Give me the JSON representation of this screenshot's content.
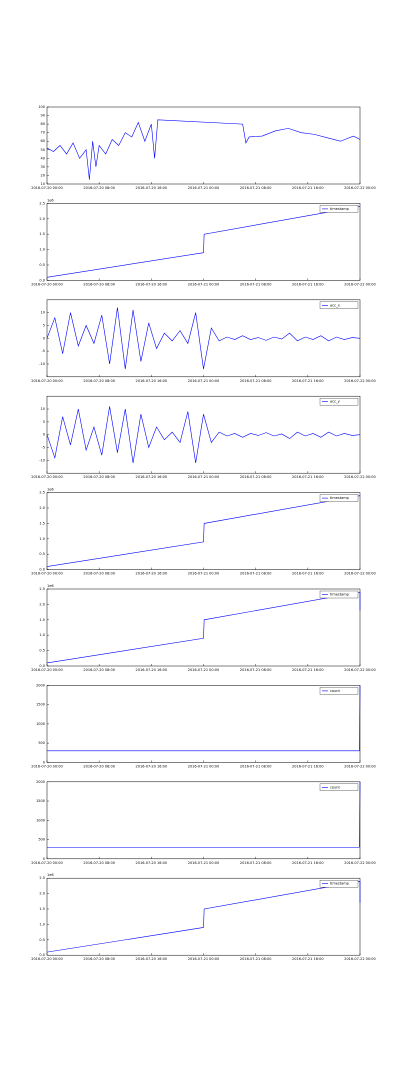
{
  "chart_data": [
    {
      "type": "line",
      "x": [
        0,
        1,
        2,
        3,
        4,
        5,
        6,
        6.5,
        7,
        7.5,
        8,
        9,
        10,
        11,
        12,
        13,
        14,
        15,
        16,
        16.5,
        17,
        30,
        30.5,
        31,
        33,
        35,
        37,
        39,
        41,
        43,
        45,
        47,
        48
      ],
      "values": [
        52,
        48,
        55,
        45,
        58,
        40,
        50,
        15,
        60,
        30,
        55,
        45,
        62,
        55,
        70,
        65,
        82,
        60,
        80,
        40,
        85,
        80,
        58,
        65,
        66,
        72,
        75,
        70,
        68,
        64,
        60,
        66,
        62
      ],
      "color": "#0000ff",
      "xlim": [
        0,
        48
      ],
      "ylim": [
        10,
        100
      ],
      "yticks": [
        10,
        20,
        30,
        40,
        50,
        60,
        70,
        80,
        90,
        100
      ],
      "xticks": [
        {
          "value": 0,
          "label": "2016-07-20 00:00"
        },
        {
          "value": 8,
          "label": "2016-07-20 08:00"
        },
        {
          "value": 16,
          "label": "2016-07-20 16:00"
        },
        {
          "value": 24,
          "label": "2016-07-21 00:00"
        },
        {
          "value": 32,
          "label": "2016-07-21 08:00"
        },
        {
          "value": 40,
          "label": "2016-07-21 16:00"
        },
        {
          "value": 48,
          "label": "2016-07-22 00:00"
        }
      ]
    },
    {
      "type": "line",
      "x": [
        0,
        24,
        24.1,
        48
      ],
      "series": [
        {
          "name": "timestamp",
          "color": "#0000ff",
          "values": [
            100000,
            900000,
            1500000,
            2400000
          ]
        }
      ],
      "xlim": [
        0,
        48
      ],
      "ylim": [
        0,
        2500000
      ],
      "offset_label": "1e6",
      "yticks": [
        {
          "value": 0,
          "label": "0.0"
        },
        {
          "value": 500000,
          "label": "0.5"
        },
        {
          "value": 1000000,
          "label": "1.0"
        },
        {
          "value": 1500000,
          "label": "1.5"
        },
        {
          "value": 2000000,
          "label": "2.0"
        },
        {
          "value": 2500000,
          "label": "2.5"
        }
      ],
      "xticks": [
        {
          "value": 0,
          "label": "2016-07-20 00:00"
        },
        {
          "value": 8,
          "label": "2016-07-20 08:00"
        },
        {
          "value": 16,
          "label": "2016-07-20 16:00"
        },
        {
          "value": 24,
          "label": "2016-07-21 00:00"
        },
        {
          "value": 32,
          "label": "2016-07-21 08:00"
        },
        {
          "value": 40,
          "label": "2016-07-21 16:00"
        },
        {
          "value": 48,
          "label": "2016-07-22 00:00"
        }
      ]
    },
    {
      "type": "line",
      "x": [
        0,
        1.2,
        2.4,
        3.6,
        4.8,
        6,
        7.2,
        8.4,
        9.6,
        10.8,
        12,
        13.2,
        14.4,
        15.6,
        16.8,
        18,
        19.2,
        20.4,
        21.6,
        22.8,
        24,
        25.2,
        26.4,
        27.6,
        28.8,
        30,
        31.2,
        32.4,
        33.6,
        34.8,
        36,
        37.2,
        38.4,
        39.6,
        40.8,
        42,
        43.2,
        44.4,
        45.6,
        46.8,
        48
      ],
      "series": [
        {
          "name": "acc_x",
          "color": "#0000ff",
          "values": [
            0,
            8,
            -6,
            10,
            -3,
            5,
            -2,
            9,
            -10,
            12,
            -12,
            11,
            -9,
            6,
            -4,
            2,
            -1,
            3,
            -2,
            10,
            -12,
            4,
            -1,
            0.5,
            -0.5,
            1,
            -0.5,
            0.3,
            -0.8,
            0.5,
            -0.3,
            2,
            -1,
            0.5,
            -0.5,
            1,
            -1,
            0.5,
            -0.5,
            0.3,
            0
          ]
        }
      ],
      "xlim": [
        0,
        48
      ],
      "ylim": [
        -15,
        15
      ],
      "yticks": [
        -10,
        -5,
        0,
        5,
        10
      ],
      "xticks": [
        {
          "value": 0,
          "label": "2016-07-20 00:00"
        },
        {
          "value": 8,
          "label": "2016-07-20 08:00"
        },
        {
          "value": 16,
          "label": "2016-07-20 16:00"
        },
        {
          "value": 24,
          "label": "2016-07-21 00:00"
        },
        {
          "value": 32,
          "label": "2016-07-21 08:00"
        },
        {
          "value": 40,
          "label": "2016-07-21 16:00"
        },
        {
          "value": 48,
          "label": "2016-07-22 00:00"
        }
      ]
    },
    {
      "type": "line",
      "x": [
        0,
        1.2,
        2.4,
        3.6,
        4.8,
        6,
        7.2,
        8.4,
        9.6,
        10.8,
        12,
        13.2,
        14.4,
        15.6,
        16.8,
        18,
        19.2,
        20.4,
        21.6,
        22.8,
        24,
        25.2,
        26.4,
        27.6,
        28.8,
        30,
        31.2,
        32.4,
        33.6,
        34.8,
        36,
        37.2,
        38.4,
        39.6,
        40.8,
        42,
        43.2,
        44.4,
        45.6,
        46.8,
        48
      ],
      "series": [
        {
          "name": "acc_y",
          "color": "#0000ff",
          "values": [
            0,
            -9,
            7,
            -4,
            10,
            -6,
            3,
            -8,
            11,
            -7,
            10,
            -11,
            8,
            -5,
            3,
            -2,
            1,
            -3,
            9,
            -11,
            8,
            -3,
            1,
            -0.5,
            0.5,
            -1,
            0.5,
            -0.3,
            0.8,
            -0.5,
            0.3,
            -1.5,
            1,
            -0.5,
            0.5,
            -1,
            1,
            -0.5,
            0.5,
            -0.3,
            0
          ]
        }
      ],
      "xlim": [
        0,
        48
      ],
      "ylim": [
        -15,
        15
      ],
      "yticks": [
        -10,
        -5,
        0,
        5,
        10
      ],
      "xticks": [
        {
          "value": 0,
          "label": "2016-07-20 00:00"
        },
        {
          "value": 8,
          "label": "2016-07-20 08:00"
        },
        {
          "value": 16,
          "label": "2016-07-20 16:00"
        },
        {
          "value": 24,
          "label": "2016-07-21 00:00"
        },
        {
          "value": 32,
          "label": "2016-07-21 08:00"
        },
        {
          "value": 40,
          "label": "2016-07-21 16:00"
        },
        {
          "value": 48,
          "label": "2016-07-22 00:00"
        }
      ]
    },
    {
      "type": "line",
      "x": [
        0,
        24,
        24.1,
        48
      ],
      "series": [
        {
          "name": "timestamp",
          "color": "#0000ff",
          "values": [
            100000,
            900000,
            1500000,
            2400000
          ]
        }
      ],
      "xlim": [
        0,
        48
      ],
      "ylim": [
        0,
        2500000
      ],
      "offset_label": "1e6",
      "yticks": [
        {
          "value": 0,
          "label": "0.0"
        },
        {
          "value": 500000,
          "label": "0.5"
        },
        {
          "value": 1000000,
          "label": "1.0"
        },
        {
          "value": 1500000,
          "label": "1.5"
        },
        {
          "value": 2000000,
          "label": "2.0"
        },
        {
          "value": 2500000,
          "label": "2.5"
        }
      ],
      "xticks": [
        {
          "value": 0,
          "label": "2016-07-20 00:00"
        },
        {
          "value": 8,
          "label": "2016-07-20 08:00"
        },
        {
          "value": 16,
          "label": "2016-07-20 16:00"
        },
        {
          "value": 24,
          "label": "2016-07-21 00:00"
        },
        {
          "value": 32,
          "label": "2016-07-21 08:00"
        },
        {
          "value": 40,
          "label": "2016-07-21 16:00"
        },
        {
          "value": 48,
          "label": "2016-07-22 00:00"
        }
      ]
    },
    {
      "type": "line",
      "x": [
        0,
        24,
        24.1,
        48,
        48
      ],
      "series": [
        {
          "name": "timestamp",
          "color": "#0000ff",
          "values": [
            100000,
            900000,
            1500000,
            2400000,
            1800000
          ]
        }
      ],
      "xlim": [
        0,
        48
      ],
      "ylim": [
        0,
        2500000
      ],
      "offset_label": "1e6",
      "yticks": [
        {
          "value": 0,
          "label": "0.0"
        },
        {
          "value": 500000,
          "label": "0.5"
        },
        {
          "value": 1000000,
          "label": "1.0"
        },
        {
          "value": 1500000,
          "label": "1.5"
        },
        {
          "value": 2000000,
          "label": "2.0"
        },
        {
          "value": 2500000,
          "label": "2.5"
        }
      ],
      "xticks": [
        {
          "value": 0,
          "label": "2016-07-20 00:00"
        },
        {
          "value": 8,
          "label": "2016-07-20 08:00"
        },
        {
          "value": 16,
          "label": "2016-07-20 16:00"
        },
        {
          "value": 24,
          "label": "2016-07-21 00:00"
        },
        {
          "value": 32,
          "label": "2016-07-21 08:00"
        },
        {
          "value": 40,
          "label": "2016-07-21 16:00"
        },
        {
          "value": 48,
          "label": "2016-07-22 00:00"
        }
      ]
    },
    {
      "type": "line",
      "x": [
        0,
        47.9,
        48
      ],
      "series": [
        {
          "name": "count",
          "color": "#0000ff",
          "values": [
            300,
            300,
            2000
          ]
        }
      ],
      "xlim": [
        0,
        48
      ],
      "ylim": [
        0,
        2000
      ],
      "yticks": [
        0,
        500,
        1000,
        1500,
        2000
      ],
      "xticks": [
        {
          "value": 0,
          "label": "2016-07-20 00:00"
        },
        {
          "value": 8,
          "label": "2016-07-20 08:00"
        },
        {
          "value": 16,
          "label": "2016-07-20 16:00"
        },
        {
          "value": 24,
          "label": "2016-07-21 00:00"
        },
        {
          "value": 32,
          "label": "2016-07-21 08:00"
        },
        {
          "value": 40,
          "label": "2016-07-21 16:00"
        },
        {
          "value": 48,
          "label": "2016-07-22 00:00"
        }
      ]
    },
    {
      "type": "line",
      "x": [
        0,
        47.9,
        48
      ],
      "series": [
        {
          "name": "count",
          "color": "#0000ff",
          "values": [
            300,
            300,
            2000
          ]
        }
      ],
      "xlim": [
        0,
        48
      ],
      "ylim": [
        0,
        2000
      ],
      "yticks": [
        0,
        500,
        1000,
        1500,
        2000
      ],
      "xticks": [
        {
          "value": 0,
          "label": "2016-07-20 00:00"
        },
        {
          "value": 8,
          "label": "2016-07-20 08:00"
        },
        {
          "value": 16,
          "label": "2016-07-20 16:00"
        },
        {
          "value": 24,
          "label": "2016-07-21 00:00"
        },
        {
          "value": 32,
          "label": "2016-07-21 08:00"
        },
        {
          "value": 40,
          "label": "2016-07-21 16:00"
        },
        {
          "value": 48,
          "label": "2016-07-22 00:00"
        }
      ]
    },
    {
      "type": "line",
      "x": [
        0,
        24,
        24.1,
        48,
        48
      ],
      "series": [
        {
          "name": "timestamp",
          "color": "#0000ff",
          "values": [
            100000,
            900000,
            1500000,
            2400000,
            1700000
          ]
        }
      ],
      "xlim": [
        0,
        48
      ],
      "ylim": [
        0,
        2500000
      ],
      "offset_label": "1e6",
      "yticks": [
        {
          "value": 0,
          "label": "0.0"
        },
        {
          "value": 500000,
          "label": "0.5"
        },
        {
          "value": 1000000,
          "label": "1.0"
        },
        {
          "value": 1500000,
          "label": "1.5"
        },
        {
          "value": 2000000,
          "label": "2.0"
        },
        {
          "value": 2500000,
          "label": "2.5"
        }
      ],
      "xticks": [
        {
          "value": 0,
          "label": "2016-07-20 00:00"
        },
        {
          "value": 8,
          "label": "2016-07-20 08:00"
        },
        {
          "value": 16,
          "label": "2016-07-20 16:00"
        },
        {
          "value": 24,
          "label": "2016-07-21 00:00"
        },
        {
          "value": 32,
          "label": "2016-07-21 08:00"
        },
        {
          "value": 40,
          "label": "2016-07-21 16:00"
        },
        {
          "value": 48,
          "label": "2016-07-22 00:00"
        }
      ]
    }
  ]
}
